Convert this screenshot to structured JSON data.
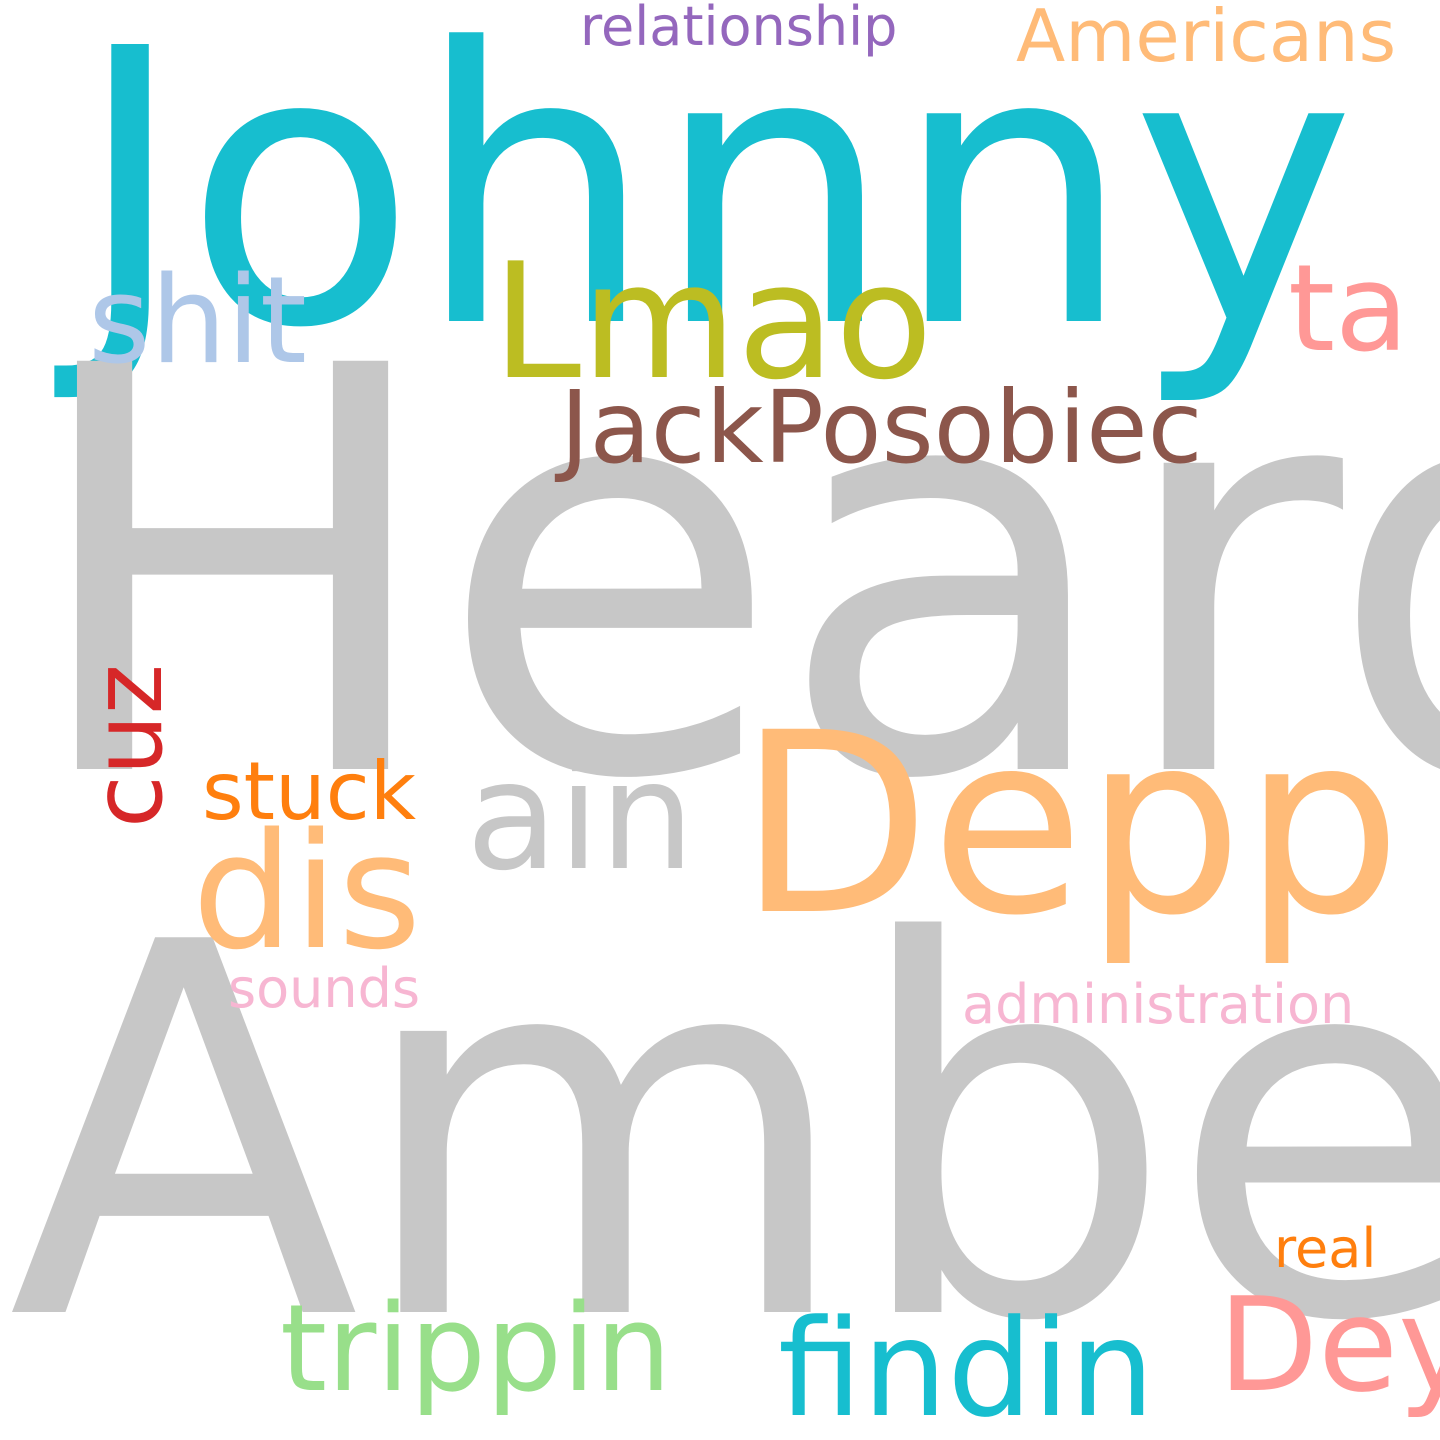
{
  "colors": {
    "background": "#ffffff",
    "gray": "#c7c7c7",
    "teal": "#17becf",
    "olive": "#bcbd22",
    "brown": "#8c564b",
    "pink": "#ff9896",
    "light_blue": "#aec7e8",
    "light_orange": "#ffbb78",
    "orange": "#ff7f0e",
    "red": "#d62728",
    "purple": "#9467bd",
    "light_pink": "#f7b6d2",
    "light_green": "#98df8a"
  },
  "words": {
    "johnny": {
      "text": "Johnny",
      "color": "#17becf"
    },
    "heard": {
      "text": "Heard",
      "color": "#c7c7c7"
    },
    "amber": {
      "text": "Amber",
      "color": "#c7c7c7"
    },
    "depp": {
      "text": "Depp",
      "color": "#ffbb78"
    },
    "lmao": {
      "text": "Lmao",
      "color": "#bcbd22"
    },
    "jackposobiec": {
      "text": "JackPosobiec",
      "color": "#8c564b"
    },
    "ta": {
      "text": "ta",
      "color": "#ff9896"
    },
    "shit": {
      "text": "shit",
      "color": "#aec7e8"
    },
    "ain": {
      "text": "ain",
      "color": "#c7c7c7"
    },
    "dis": {
      "text": "dis",
      "color": "#ffbb78"
    },
    "stuck": {
      "text": "stuck",
      "color": "#ff7f0e"
    },
    "cuz": {
      "text": "cuz",
      "color": "#d62728"
    },
    "relationship": {
      "text": "relationship",
      "color": "#9467bd"
    },
    "americans": {
      "text": "Americans",
      "color": "#ffbb78"
    },
    "administration": {
      "text": "administration",
      "color": "#f7b6d2"
    },
    "sounds": {
      "text": "sounds",
      "color": "#f7b6d2"
    },
    "real": {
      "text": "real",
      "color": "#ff7f0e"
    },
    "dey": {
      "text": "Dey",
      "color": "#ff9896"
    },
    "trippin": {
      "text": "trippin",
      "color": "#98df8a"
    },
    "findin": {
      "text": "findin",
      "color": "#17becf"
    }
  }
}
